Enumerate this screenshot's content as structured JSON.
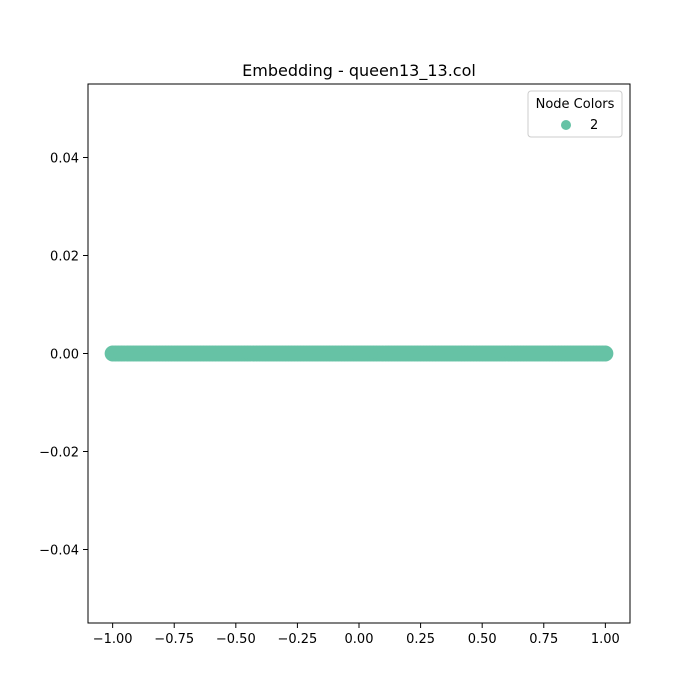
{
  "chart_data": {
    "type": "scatter",
    "title": "Embedding - queen13_13.col",
    "xlabel": "",
    "ylabel": "",
    "xlim": [
      -1.1,
      1.1
    ],
    "ylim": [
      -0.055,
      0.055
    ],
    "xticks": [
      -1.0,
      -0.75,
      -0.5,
      -0.25,
      0.0,
      0.25,
      0.5,
      0.75,
      1.0
    ],
    "xtick_labels": [
      "−1.00",
      "−0.75",
      "−0.50",
      "−0.25",
      "0.00",
      "0.25",
      "0.50",
      "0.75",
      "1.00"
    ],
    "yticks": [
      -0.04,
      -0.02,
      0.0,
      0.02,
      0.04
    ],
    "ytick_labels": [
      "−0.04",
      "−0.02",
      "0.00",
      "0.02",
      "0.04"
    ],
    "grid": false,
    "legend": {
      "title": "Node Colors",
      "placement": "top-right",
      "entries": [
        {
          "label": "2",
          "color": "#66c2a5"
        }
      ]
    },
    "series": [
      {
        "name": "2",
        "color": "#66c2a5",
        "x_range": [
          -1.0,
          1.0
        ],
        "y": 0.0,
        "count": 169
      }
    ]
  }
}
